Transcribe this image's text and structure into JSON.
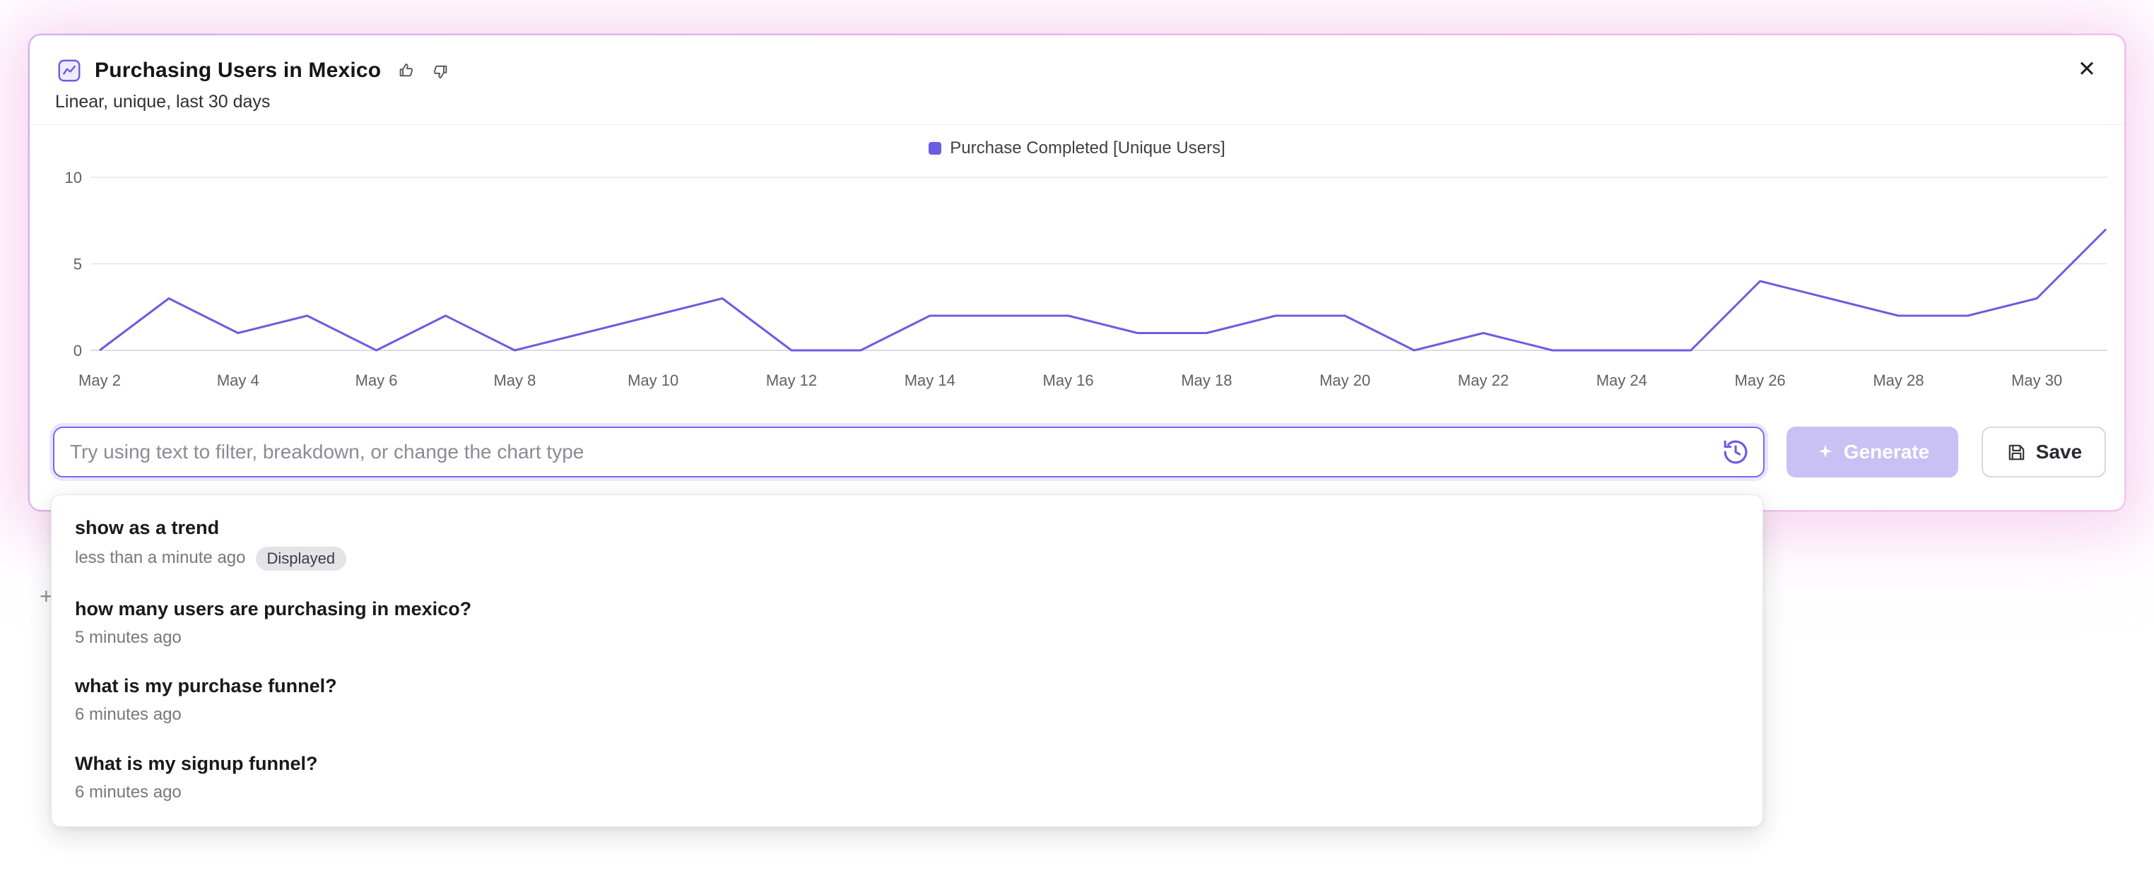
{
  "colors": {
    "accent": "#6c5ce0",
    "input_border": "#7e66f0",
    "generate_bg": "#c9c0f4",
    "glow_pink": "#f3b0e5"
  },
  "header": {
    "title": "Purchasing Users in Mexico",
    "subtitle": "Linear, unique, last 30 days",
    "close_label": "✕"
  },
  "chart_data": {
    "type": "line",
    "series_name": "Purchase Completed [Unique Users]",
    "color": "#6c5ce0",
    "x": [
      "May 2",
      "May 3",
      "May 4",
      "May 5",
      "May 6",
      "May 7",
      "May 8",
      "May 9",
      "May 10",
      "May 11",
      "May 12",
      "May 13",
      "May 14",
      "May 15",
      "May 16",
      "May 17",
      "May 18",
      "May 19",
      "May 20",
      "May 21",
      "May 22",
      "May 23",
      "May 24",
      "May 25",
      "May 26",
      "May 27",
      "May 28",
      "May 29",
      "May 30",
      "May 31"
    ],
    "x_tick_labels": [
      "May 2",
      "May 4",
      "May 6",
      "May 8",
      "May 10",
      "May 12",
      "May 14",
      "May 16",
      "May 18",
      "May 20",
      "May 22",
      "May 24",
      "May 26",
      "May 28",
      "May 30"
    ],
    "values": [
      0,
      3,
      1,
      2,
      0,
      2,
      0,
      1,
      2,
      3,
      0,
      0,
      2,
      2,
      2,
      1,
      1,
      2,
      2,
      0,
      1,
      0,
      0,
      0,
      4,
      3,
      2,
      2,
      3,
      7
    ],
    "ylim": [
      0,
      10
    ],
    "yticks": [
      0,
      5,
      10
    ],
    "grid": true,
    "legend_position": "top-center"
  },
  "prompt_bar": {
    "placeholder": "Try using text to filter, breakdown, or change the chart type",
    "generate_label": "Generate",
    "save_label": "Save"
  },
  "history_dropdown": {
    "items": [
      {
        "title": "show as a trend",
        "time": "less than a minute ago",
        "badge": "Displayed"
      },
      {
        "title": "how many users are purchasing in mexico?",
        "time": "5 minutes ago",
        "badge": ""
      },
      {
        "title": "what is my purchase funnel?",
        "time": "6 minutes ago",
        "badge": ""
      },
      {
        "title": "What is my signup funnel?",
        "time": "6 minutes ago",
        "badge": ""
      }
    ]
  },
  "misc": {
    "plus_label": "+"
  }
}
